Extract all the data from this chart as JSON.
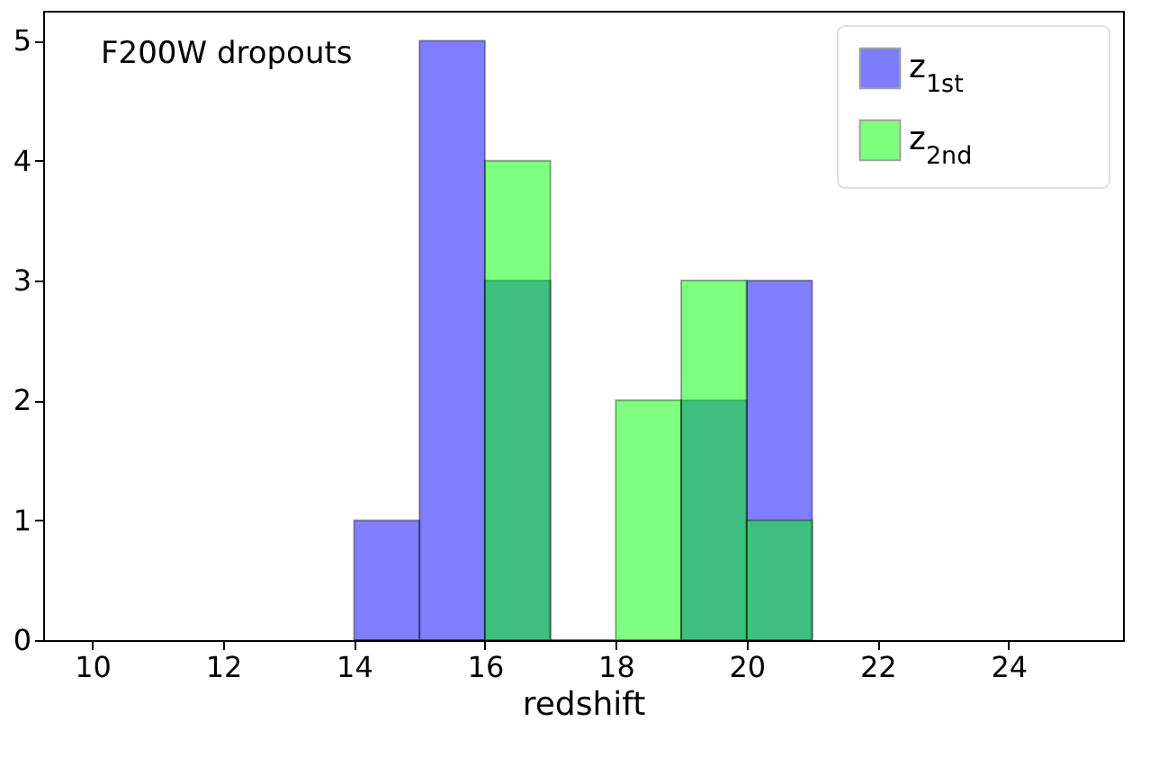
{
  "chart_data": {
    "type": "histogram",
    "xlabel": "redshift",
    "annotations": [
      "F200W dropouts"
    ],
    "bins": [
      14,
      15,
      16,
      17,
      18,
      19,
      20,
      21
    ],
    "series": [
      {
        "name": "z$_{1st}$",
        "color": "#0000ff",
        "values": [
          1,
          5,
          3,
          0,
          0,
          2,
          3
        ]
      },
      {
        "name": "z$_{2nd}$",
        "color": "#00ff00",
        "values": [
          0,
          0,
          4,
          0,
          2,
          3,
          1
        ]
      }
    ],
    "xlim": [
      9.25,
      25.75
    ],
    "xticks": [
      10,
      12,
      14,
      16,
      18,
      20,
      22,
      24
    ],
    "ylim": [
      0,
      5.25
    ],
    "yticks": [
      0,
      1,
      2,
      3,
      4,
      5
    ],
    "grid": false,
    "legend": "top right"
  }
}
